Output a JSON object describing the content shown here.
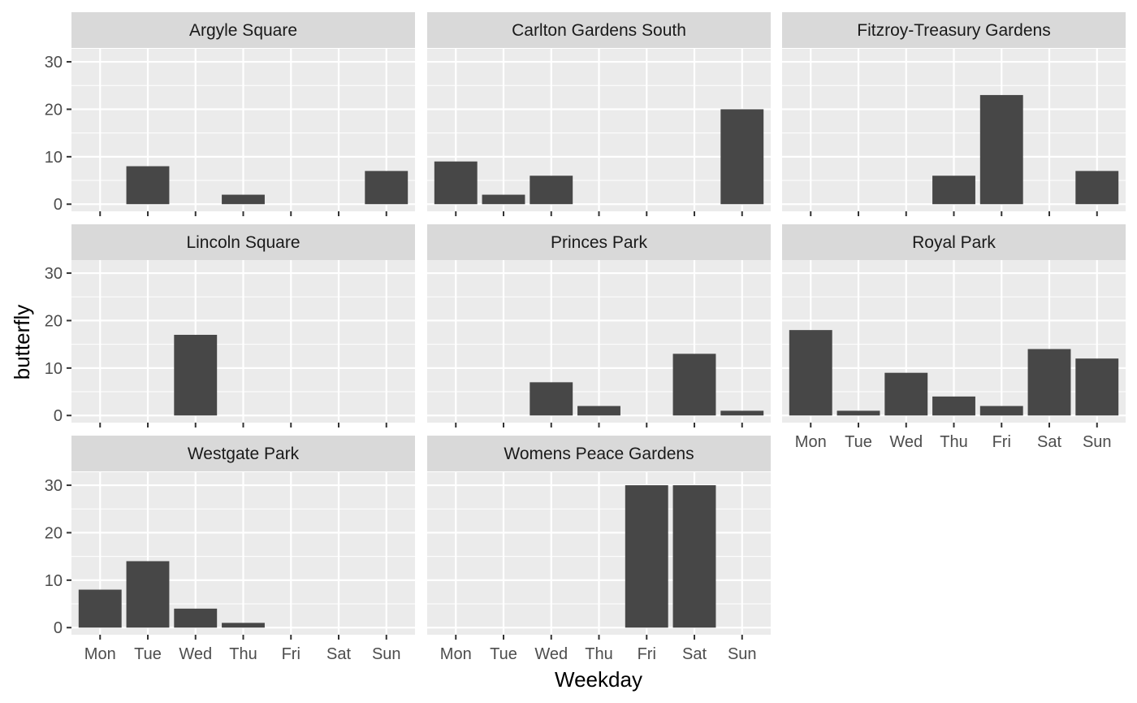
{
  "chart_data": {
    "type": "bar",
    "layout": "facet-wrap",
    "xlabel": "Weekday",
    "ylabel": "butterfly",
    "categories": [
      "Mon",
      "Tue",
      "Wed",
      "Thu",
      "Fri",
      "Sat",
      "Sun"
    ],
    "ylim": [
      0,
      30
    ],
    "yticks": [
      0,
      10,
      20,
      30
    ],
    "grid": true,
    "colors": {
      "bar": "#474747",
      "panel": "#EBEBEB",
      "strip": "#D9D9D9",
      "grid": "#FFFFFF",
      "tick": "#333333"
    },
    "facets": [
      {
        "name": "Argyle Square",
        "values": [
          0,
          8,
          0,
          2,
          0,
          0,
          7
        ]
      },
      {
        "name": "Carlton Gardens South",
        "values": [
          9,
          2,
          6,
          0,
          0,
          0,
          20
        ]
      },
      {
        "name": "Fitzroy-Treasury Gardens",
        "values": [
          0,
          0,
          0,
          6,
          23,
          0,
          7
        ]
      },
      {
        "name": "Lincoln Square",
        "values": [
          0,
          0,
          17,
          0,
          0,
          0,
          0
        ]
      },
      {
        "name": "Princes Park",
        "values": [
          0,
          0,
          7,
          2,
          0,
          13,
          1
        ]
      },
      {
        "name": "Royal Park",
        "values": [
          18,
          1,
          9,
          4,
          2,
          14,
          12
        ]
      },
      {
        "name": "Westgate Park",
        "values": [
          8,
          14,
          4,
          1,
          0,
          0,
          0
        ]
      },
      {
        "name": "Womens Peace Gardens",
        "values": [
          0,
          0,
          0,
          0,
          30,
          30,
          0
        ]
      }
    ]
  }
}
